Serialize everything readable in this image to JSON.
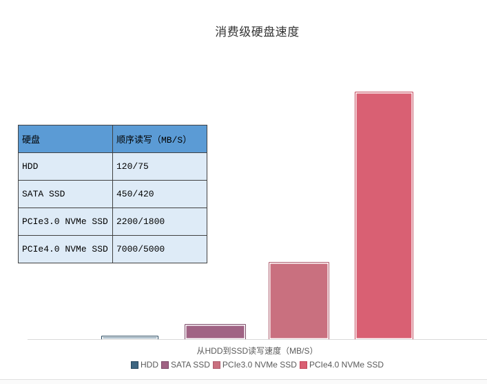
{
  "chart_data": {
    "type": "bar",
    "title": "消费级硬盘速度",
    "xlabel": "从HDD到SSD读写速度（MB/S）",
    "ylabel": "",
    "categories": [
      "HDD",
      "SATA SSD",
      "PCIe3.0 NVMe SSD",
      "PCIe4.0 NVMe SSD"
    ],
    "values": [
      120,
      450,
      2200,
      7000
    ],
    "write_speeds": [
      75,
      420,
      1800,
      5000
    ],
    "ylim": [
      0,
      7000
    ],
    "grid": false,
    "legend_position": "bottom",
    "bar_styles": [
      {
        "fill": "#3e6681",
        "border": "#24455c"
      },
      {
        "fill": "#a06384",
        "border": "#7a4866"
      },
      {
        "fill": "#c9707f",
        "border": "#ad5a6b"
      },
      {
        "fill": "#d96073",
        "border": "#c24458"
      }
    ],
    "axis_line_color": "#d9d9d9"
  },
  "table": {
    "headers": [
      "硬盘",
      "顺序读写（MB/S）"
    ],
    "rows": [
      [
        "HDD",
        "120/75"
      ],
      [
        "SATA SSD",
        "450/420"
      ],
      [
        "PCIe3.0 NVMe SSD",
        "2200/1800"
      ],
      [
        "PCIe4.0 NVMe SSD",
        "7000/5000"
      ]
    ],
    "header_bg": "#5b9bd5",
    "cell_bg": "#deebf7"
  }
}
